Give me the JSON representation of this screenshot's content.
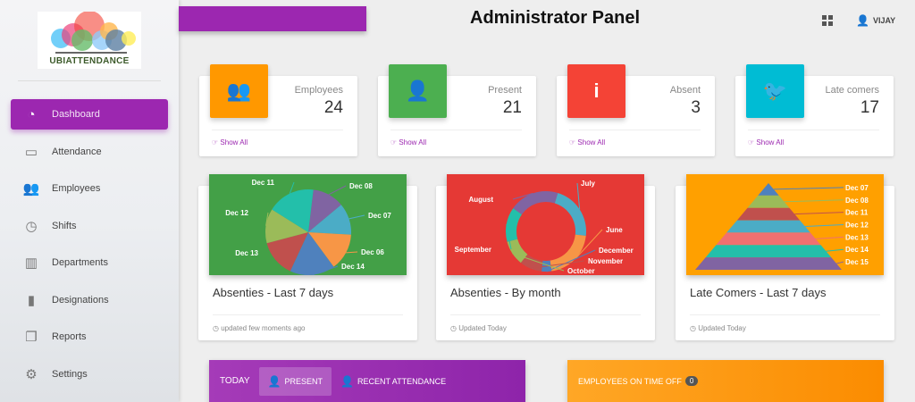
{
  "app": {
    "logo_text": "UBIATTENDANCE",
    "title": "Administrator Panel",
    "user": "VIJAY"
  },
  "sidebar": {
    "items": [
      {
        "label": "Dashboard",
        "icon": "dashboard-icon",
        "active": true
      },
      {
        "label": "Attendance",
        "icon": "calendar-icon"
      },
      {
        "label": "Employees",
        "icon": "users-icon"
      },
      {
        "label": "Shifts",
        "icon": "clock-icon"
      },
      {
        "label": "Departments",
        "icon": "building-icon"
      },
      {
        "label": "Designations",
        "icon": "bar-chart-icon"
      },
      {
        "label": "Reports",
        "icon": "copy-icon"
      },
      {
        "label": "Settings",
        "icon": "gears-icon"
      }
    ]
  },
  "stats": [
    {
      "label": "Employees",
      "value": "24",
      "link": "Show All",
      "color": "#ff9800",
      "icon": "users-icon"
    },
    {
      "label": "Present",
      "value": "21",
      "link": "Show All",
      "color": "#4caf50",
      "icon": "user-icon"
    },
    {
      "label": "Absent",
      "value": "3",
      "link": "Show All",
      "color": "#f44336",
      "icon": "info-icon"
    },
    {
      "label": "Late comers",
      "value": "17",
      "link": "Show All",
      "color": "#00bcd4",
      "icon": "twitter-icon"
    }
  ],
  "charts": [
    {
      "title": "Absenties - Last 7 days",
      "footer": "updated few moments ago",
      "bg": "#43a047"
    },
    {
      "title": "Absenties - By month",
      "footer": "Updated Today",
      "bg": "#e53935"
    },
    {
      "title": "Late Comers - Last 7 days",
      "footer": "Updated Today",
      "bg": "#ffa000"
    }
  ],
  "chart_data": [
    {
      "type": "pie",
      "labels": [
        "Dec 08",
        "Dec 07",
        "Dec 06",
        "Dec 14",
        "Dec 13",
        "Dec 12",
        "Dec 11"
      ],
      "values": [
        12,
        12,
        14,
        17,
        14,
        13,
        18
      ],
      "colors": [
        "#8064a2",
        "#4bacc6",
        "#f79646",
        "#4f81bd",
        "#c0504d",
        "#9bbb59",
        "#23bfaa"
      ]
    },
    {
      "type": "pie",
      "donut": true,
      "labels": [
        "July",
        "June",
        "December",
        "November",
        "October",
        "September",
        "August"
      ],
      "values": [
        22,
        21,
        4,
        9,
        10,
        14,
        20
      ],
      "colors": [
        "#4bacc6",
        "#f79646",
        "#4f81bd",
        "#c0504d",
        "#9bbb59",
        "#23bfaa",
        "#8064a2"
      ]
    },
    {
      "type": "pyramid",
      "labels": [
        "Dec 07",
        "Dec 08",
        "Dec 11",
        "Dec 12",
        "Dec 13",
        "Dec 14",
        "Dec 15"
      ],
      "values": [
        1,
        1,
        1,
        1,
        1,
        1,
        1
      ],
      "colors": [
        "#4f81bd",
        "#9bbb59",
        "#c0504d",
        "#4bacc6",
        "#f07070",
        "#23bfaa",
        "#8064a2"
      ]
    }
  ],
  "bottom": {
    "today": "TODAY",
    "present": "PRESENT",
    "recent": "RECENT ATTENDANCE",
    "timeoff": "EMPLOYEES ON TIME OFF",
    "timeoff_count": "0"
  }
}
